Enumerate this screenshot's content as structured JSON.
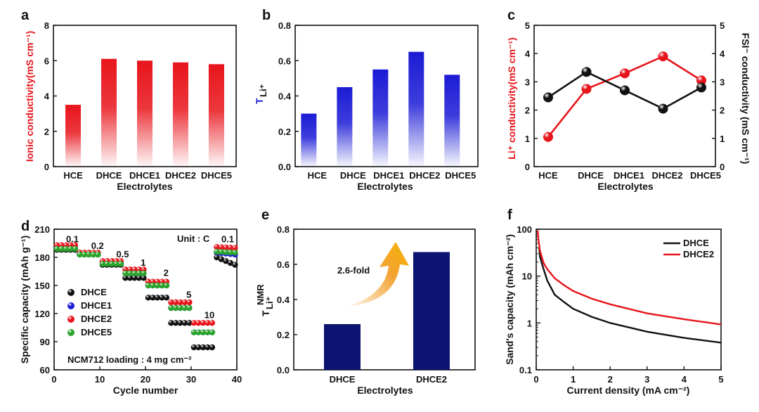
{
  "colors": {
    "red": "#e8141b",
    "blue": "#1b1bd6",
    "navy": "#0b1470",
    "black": "#111111",
    "orange": "#f2991c",
    "green": "#29a329"
  },
  "chart_data": [
    {
      "id": "a",
      "type": "bar",
      "panel": "a",
      "title": "",
      "categories": [
        "HCE",
        "DHCE",
        "DHCE1",
        "DHCE2",
        "DHCE5"
      ],
      "values": [
        3.5,
        6.1,
        6.0,
        5.9,
        5.8
      ],
      "xlabel": "Electrolytes",
      "ylabel": "Ionic conductivity(mS cm⁻¹)",
      "ylim": [
        0,
        8
      ],
      "yticks": [
        "0",
        "2",
        "4",
        "6",
        "8"
      ],
      "color": "red",
      "gradient": true
    },
    {
      "id": "b",
      "type": "bar",
      "panel": "b",
      "title": "",
      "categories": [
        "HCE",
        "DHCE",
        "DHCE1",
        "DHCE2",
        "DHCE5"
      ],
      "values": [
        0.3,
        0.45,
        0.55,
        0.65,
        0.52
      ],
      "xlabel": "Electrolytes",
      "ylabel": "T",
      "ylabel_sub": "Li⁺",
      "ylim": [
        0,
        0.8
      ],
      "yticks": [
        "0.0",
        "0.2",
        "0.4",
        "0.6",
        "0.8"
      ],
      "color": "blue",
      "gradient": true
    },
    {
      "id": "c",
      "type": "line",
      "panel": "c",
      "categories": [
        "HCE",
        "DHCE",
        "DHCE1",
        "DHCE2",
        "DHCE5"
      ],
      "xlabel": "Electrolytes",
      "ylabel": "Li⁺ conductivity(mS cm⁻¹)",
      "ylabel_right": "FSI⁻ conductivity (mS cm⁻¹)",
      "ylim": [
        0,
        5
      ],
      "yticks": [
        "0",
        "1",
        "2",
        "3",
        "4",
        "5"
      ],
      "series": [
        {
          "name": "Li+ conductivity",
          "axis": "left",
          "color": "red",
          "values": [
            1.05,
            2.75,
            3.3,
            3.9,
            3.05
          ]
        },
        {
          "name": "FSI- conductivity",
          "axis": "right",
          "color": "black",
          "values": [
            2.45,
            3.35,
            2.7,
            2.05,
            2.8
          ]
        }
      ]
    },
    {
      "id": "d",
      "type": "scatter",
      "panel": "d",
      "xlabel": "Cycle number",
      "ylabel": "Specific capacity (mAh g⁻¹)",
      "xlim": [
        0,
        40
      ],
      "ylim": [
        60,
        210
      ],
      "xticks": [
        "0",
        "10",
        "20",
        "30",
        "40"
      ],
      "yticks": [
        "60",
        "90",
        "120",
        "150",
        "180",
        "210"
      ],
      "unit_label": "Unit : C",
      "loading_label": "NCM712 loading : 4 mg cm⁻²",
      "rate_labels": [
        {
          "text": "0.1",
          "x": 4,
          "y": 196
        },
        {
          "text": "0.2",
          "x": 9.5,
          "y": 189
        },
        {
          "text": "0.5",
          "x": 15,
          "y": 180
        },
        {
          "text": "1",
          "x": 19.5,
          "y": 171
        },
        {
          "text": "2",
          "x": 24.5,
          "y": 160
        },
        {
          "text": "5",
          "x": 29.5,
          "y": 137
        },
        {
          "text": "10",
          "x": 34,
          "y": 115
        },
        {
          "text": "0.1",
          "x": 38,
          "y": 196
        }
      ],
      "rate_steps": [
        0.1,
        0.2,
        0.5,
        1,
        2,
        5,
        10,
        0.1
      ],
      "series": [
        {
          "name": "DHCE",
          "color": "black",
          "steps": [
            188,
            183,
            172,
            158,
            137,
            110,
            84,
            [
              180,
              172
            ]
          ]
        },
        {
          "name": "DHCE1",
          "color": "blue",
          "steps": [
            190,
            184,
            174,
            163,
            150,
            126,
            100,
            [
              185,
              183
            ]
          ]
        },
        {
          "name": "DHCE2",
          "color": "red",
          "steps": [
            193,
            185,
            176,
            167,
            154,
            132,
            110,
            [
              191,
              190
            ]
          ]
        },
        {
          "name": "DHCE5",
          "color": "green",
          "steps": [
            189,
            183,
            173,
            163,
            150,
            126,
            100,
            [
              186,
              185
            ]
          ]
        }
      ]
    },
    {
      "id": "e",
      "type": "bar",
      "panel": "e",
      "categories": [
        "DHCE",
        "DHCE2"
      ],
      "values": [
        0.26,
        0.67
      ],
      "xlabel": "Electrolytes",
      "ylabel": "T",
      "ylabel_sub": "Li⁺",
      "ylabel_sup": "NMR",
      "ylim": [
        0,
        0.8
      ],
      "yticks": [
        "0.0",
        "0.2",
        "0.4",
        "0.6",
        "0.8"
      ],
      "color": "navy",
      "annotation": "2.6-fold"
    },
    {
      "id": "f",
      "type": "line",
      "panel": "f",
      "xlabel": "Current density (mA cm⁻²)",
      "ylabel": "Sand's capacity (mAh cm⁻²)",
      "xlim": [
        0,
        5
      ],
      "yscale": "log",
      "ylim": [
        0.1,
        100
      ],
      "xticks": [
        "0",
        "1",
        "2",
        "3",
        "4",
        "5"
      ],
      "yticks": [
        "0.1",
        "1",
        "10",
        "100"
      ],
      "series": [
        {
          "name": "DHCE",
          "color": "black",
          "x": [
            0.08,
            0.1,
            0.2,
            0.3,
            0.5,
            0.75,
            1,
            1.5,
            2,
            3,
            4,
            5
          ],
          "y": [
            40,
            26,
            14,
            8,
            4,
            2.8,
            2,
            1.35,
            1.0,
            0.65,
            0.48,
            0.38
          ]
        },
        {
          "name": "DHCE2",
          "color": "red",
          "x": [
            0.04,
            0.06,
            0.1,
            0.2,
            0.3,
            0.5,
            0.75,
            1,
            1.5,
            2,
            3,
            4,
            5
          ],
          "y": [
            95,
            60,
            35,
            19,
            14,
            9,
            6.4,
            4.8,
            3.3,
            2.5,
            1.6,
            1.2,
            0.93
          ]
        }
      ]
    }
  ]
}
